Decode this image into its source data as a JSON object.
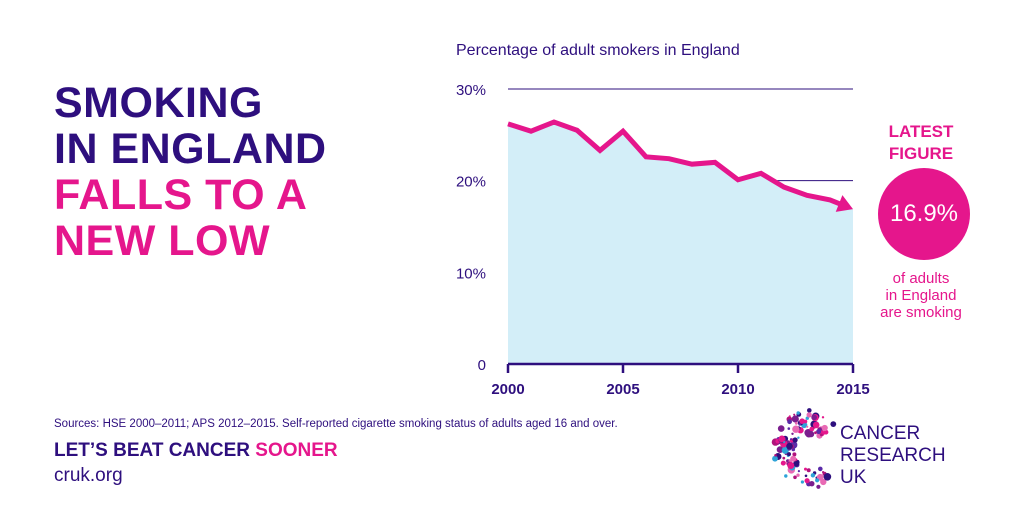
{
  "headline": {
    "line1": "SMOKING",
    "line2": "IN ENGLAND",
    "line3": "FALLS TO A",
    "line4": "NEW LOW"
  },
  "latest": {
    "label_line1": "LATEST",
    "label_line2": "FIGURE",
    "value": "16.9%",
    "desc_line1": "of adults",
    "desc_line2": "in England",
    "desc_line3": "are smoking"
  },
  "footer": {
    "sources": "Sources: HSE 2000–2011; APS 2012–2015. Self-reported cigarette smoking status of adults aged 16 and over.",
    "tagline_main": "LET’S BEAT CANCER ",
    "tagline_accent": "SOONER",
    "url": "cruk.org"
  },
  "logo": {
    "line1": "CANCER",
    "line2": "RESEARCH",
    "line3": "UK"
  },
  "colors": {
    "purple": "#2e0f7e",
    "pink": "#e5168c",
    "area": "#d3eef8",
    "grid_mid": "#6b5bc4"
  },
  "chart_data": {
    "type": "line",
    "title": "Percentage of adult smokers in England",
    "xlabel": "",
    "ylabel": "",
    "x": [
      2000,
      2001,
      2002,
      2003,
      2004,
      2005,
      2006,
      2007,
      2008,
      2009,
      2010,
      2011,
      2012,
      2013,
      2014,
      2015
    ],
    "values": [
      26.2,
      25.4,
      26.4,
      25.5,
      23.3,
      25.4,
      22.6,
      22.4,
      21.8,
      22.0,
      20.1,
      20.8,
      19.3,
      18.4,
      17.9,
      16.9
    ],
    "xlim": [
      2000,
      2015
    ],
    "ylim": [
      0,
      30
    ],
    "x_ticks": [
      2000,
      2005,
      2010,
      2015
    ],
    "x_tick_labels": [
      "2000",
      "2005",
      "2010",
      "2015"
    ],
    "y_ticks": [
      0,
      10,
      20,
      30
    ],
    "y_tick_labels": [
      "0",
      "10%",
      "20%",
      "30%"
    ],
    "grid": true
  }
}
